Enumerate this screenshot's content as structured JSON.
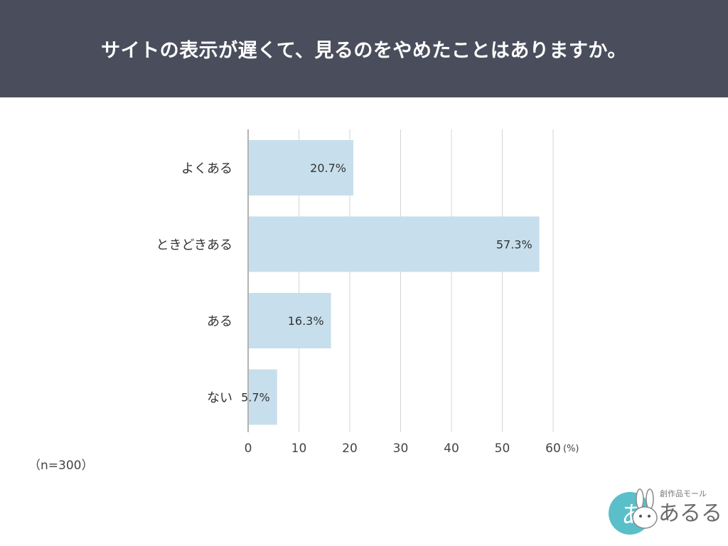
{
  "header": {
    "title": "サイトの表示が遅くて、見るのをやめたことはありますか。"
  },
  "chart_data": {
    "type": "bar",
    "orientation": "horizontal",
    "categories": [
      "よくある",
      "ときどきある",
      "ある",
      "ない"
    ],
    "values": [
      20.7,
      57.3,
      16.3,
      5.7
    ],
    "value_labels": [
      "20.7%",
      "57.3%",
      "16.3%",
      "5.7%"
    ],
    "x_ticks": [
      "0",
      "10",
      "20",
      "30",
      "40",
      "50",
      "60"
    ],
    "x_unit": "(%)",
    "xlim": [
      0,
      60
    ],
    "grid": true,
    "bar_color": "#c7dfec",
    "grid_color": "#d4d4d4"
  },
  "footnote": {
    "sample_size": "（n=300）"
  },
  "logo": {
    "brand_small": "創作品モール",
    "brand_large": "あるる",
    "mark": "あ",
    "accent": "#5bbfc9"
  }
}
